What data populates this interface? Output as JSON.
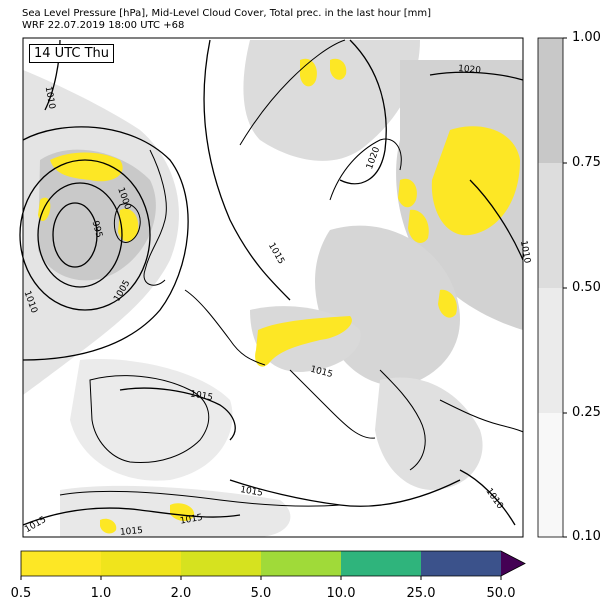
{
  "header": {
    "line1": "Sea Level Pressure [hPa], Mid-Level Cloud Cover, Total prec. in the last hour [mm]",
    "line2": "WRF 22.07.2019 18:00 UTC +68"
  },
  "map": {
    "time_label": "14 UTC Thu",
    "isobar_labels": [
      "1010",
      "995",
      "1000",
      "1005",
      "1010",
      "1015",
      "1020",
      "1020",
      "1010",
      "1015",
      "1015",
      "1015",
      "1015",
      "1015",
      "1015",
      "1010"
    ],
    "colors": {
      "land_cloud_light": "#ececec",
      "cloud_mid": "#d2d2d2",
      "cloud_dark": "#bdbdbd",
      "precip_yellow": "#fde725"
    }
  },
  "cloud_colorbar": {
    "ticks": [
      "1.00",
      "0.75",
      "0.50",
      "0.25",
      "0.10"
    ],
    "colors": [
      "#c8c8c8",
      "#dddddd",
      "#ebebeb",
      "#f8f8f8"
    ]
  },
  "precip_colorbar": {
    "ticks": [
      "0.5",
      "1.0",
      "2.0",
      "5.0",
      "10.0",
      "25.0",
      "50.0"
    ],
    "colors": [
      "#fde725",
      "#f0e41c",
      "#d6e21f",
      "#a0da39",
      "#2fb47c",
      "#3b528b",
      "#440154"
    ]
  }
}
